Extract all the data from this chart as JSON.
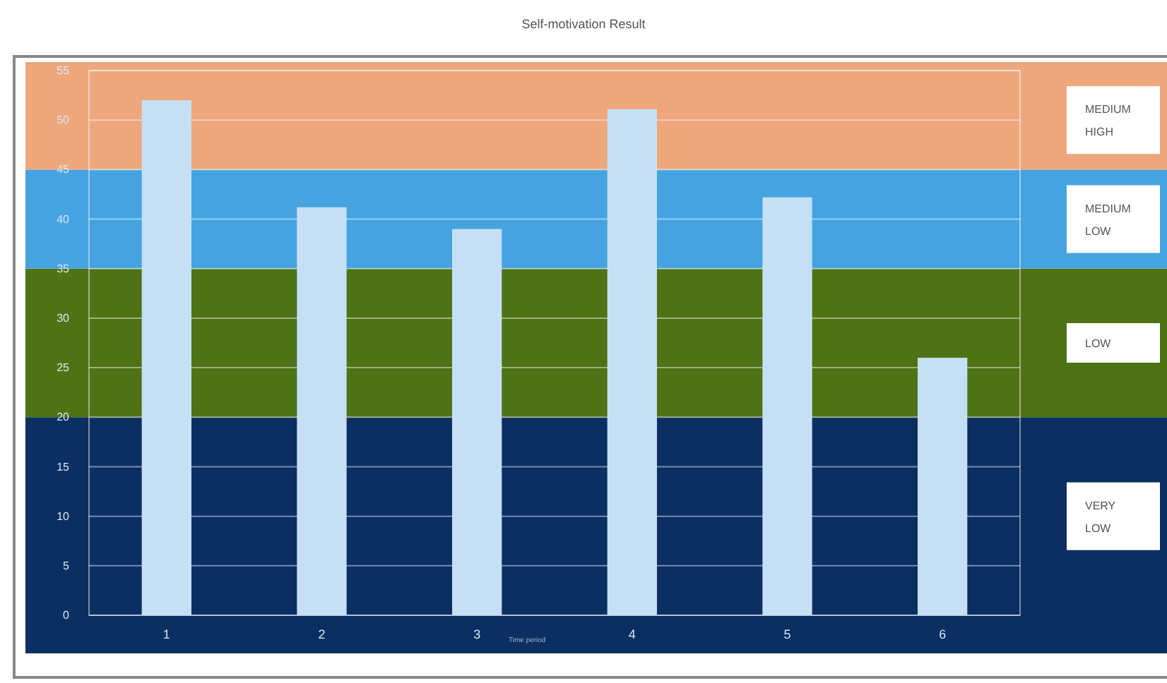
{
  "chart_data": {
    "type": "bar",
    "title": "Self-motivation Result",
    "xlabel": "Time period",
    "categories": [
      "1",
      "2",
      "3",
      "4",
      "5",
      "6"
    ],
    "values": [
      52,
      41.2,
      39,
      51.1,
      42.2,
      26
    ],
    "color": "#c5e0f5",
    "ylim": [
      0,
      55
    ],
    "yticks": [
      0,
      5,
      10,
      15,
      20,
      25,
      30,
      35,
      40,
      45,
      50,
      55
    ],
    "grid": "y",
    "bands": [
      {
        "axis": "y",
        "from": 0,
        "to": 20,
        "label": "VERY LOW",
        "color": "#0b2f63"
      },
      {
        "axis": "y",
        "from": 20,
        "to": 35,
        "label": "LOW",
        "color": "#4e7315"
      },
      {
        "axis": "y",
        "from": 35,
        "to": 45,
        "label": "MEDIUM LOW",
        "color": "#45a3e0"
      },
      {
        "axis": "y",
        "from": 45,
        "to": 55,
        "label": "MEDIUM HIGH",
        "color": "#eea67c"
      }
    ]
  }
}
